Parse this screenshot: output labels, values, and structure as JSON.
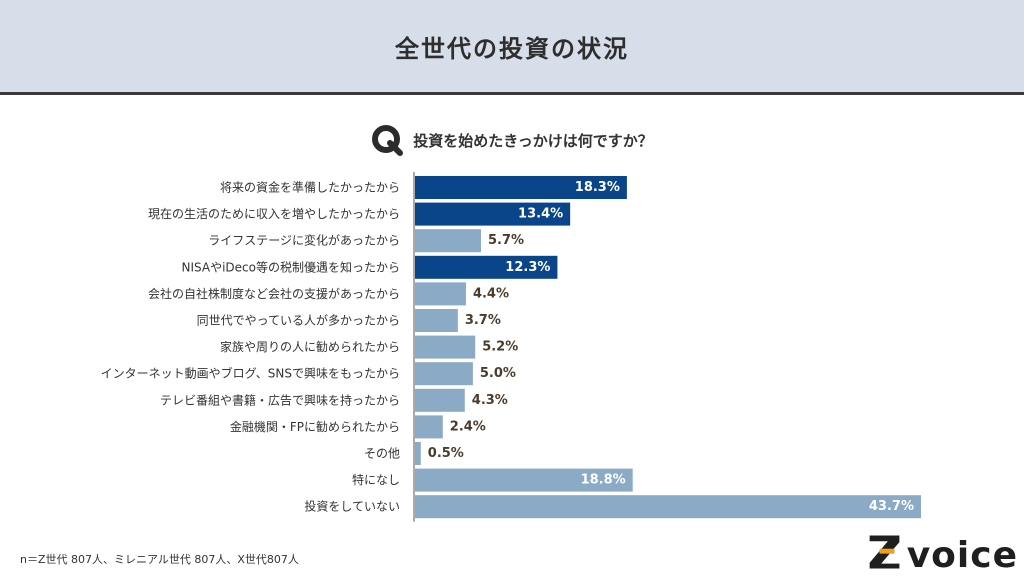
{
  "header": {
    "title": "全世代の投資の状況"
  },
  "question": {
    "text": "投資を始めたきっかけは何ですか？"
  },
  "colors": {
    "highlight": "#0a4589",
    "normal": "#8aaac6",
    "label_dark": "#4a3c2d",
    "label_light": "#ffffff"
  },
  "chart_data": {
    "type": "bar",
    "orientation": "horizontal",
    "categories": [
      "将来の資金を準備したかったから",
      "現在の生活のために収入を増やしたかったから",
      "ライフステージに変化があったから",
      "NISAやiDeco等の税制優遇を知ったから",
      "会社の自社株制度など会社の支援があったから",
      "同世代でやっている人が多かったから",
      "家族や周りの人に勧められたから",
      "インターネット動画やブログ、SNSで興味をもったから",
      "テレビ番組や書籍・広告で興味を持ったから",
      "金融機関・FPに勧められたから",
      "その他",
      "特になし",
      "投資をしていない"
    ],
    "values": [
      18.3,
      13.4,
      5.7,
      12.3,
      4.4,
      3.7,
      5.2,
      5.0,
      4.3,
      2.4,
      0.5,
      18.8,
      43.7
    ],
    "value_labels": [
      "18.3%",
      "13.4%",
      "5.7%",
      "12.3%",
      "4.4%",
      "3.7%",
      "5.2%",
      "5.0%",
      "4.3%",
      "2.4%",
      "0.5%",
      "18.8%",
      "43.7%"
    ],
    "highlighted": [
      true,
      true,
      false,
      true,
      false,
      false,
      false,
      false,
      false,
      false,
      false,
      false,
      false
    ],
    "xlim": [
      0,
      43.7
    ],
    "unit": "%"
  },
  "footnote": {
    "text": "n＝Z世代 807人、ミレニアル世代 807人、X世代807人"
  },
  "logo": {
    "text": "voice",
    "brand_letter": "Z"
  }
}
